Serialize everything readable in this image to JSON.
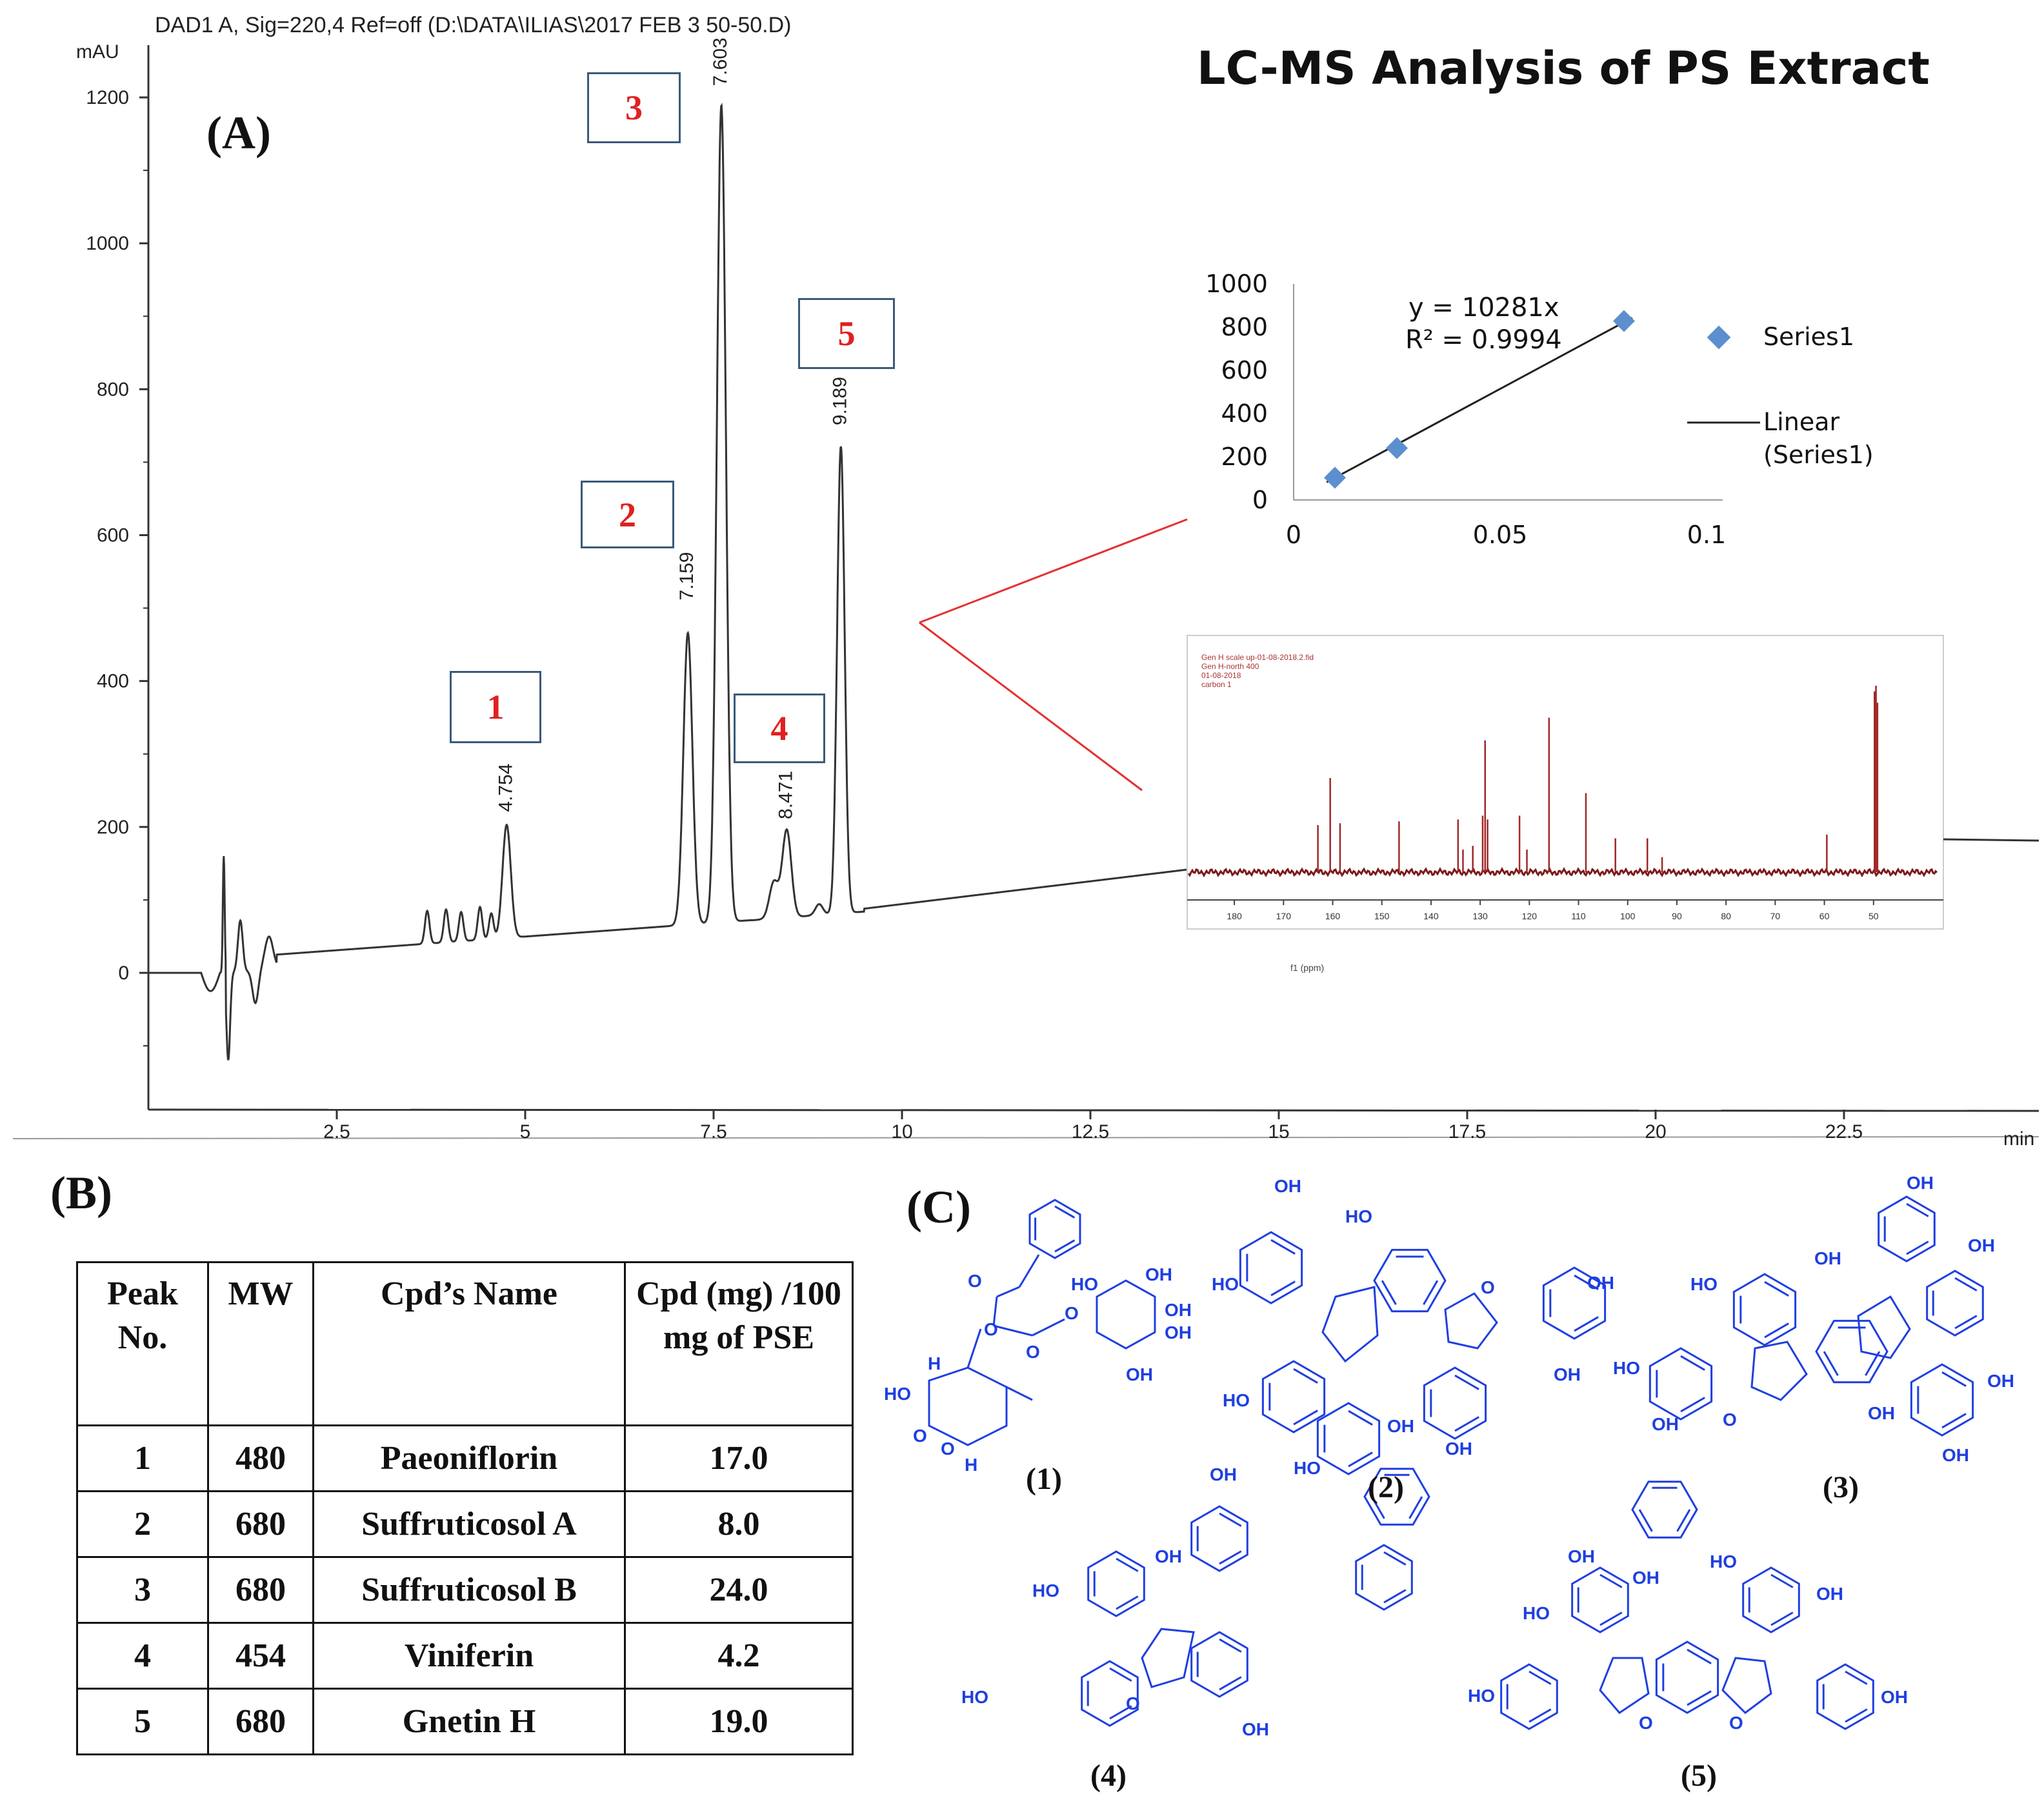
{
  "header": "DAD1 A, Sig=220,4 Ref=off (D:\\DATA\\ILIAS\\2017 FEB 3 50-50.D)",
  "title": "LC-MS Analysis of PS Extract",
  "panels": {
    "a": "(A)",
    "b": "(B)",
    "c": "(C)"
  },
  "chart_data": [
    {
      "type": "line",
      "ylabel": "mAU",
      "xlabel": "min",
      "xlim": [
        0,
        25
      ],
      "ylim": [
        -180,
        1260
      ],
      "x_ticks": [
        "2.5",
        "5",
        "7.5",
        "10",
        "12.5",
        "15",
        "17.5",
        "20",
        "22.5"
      ],
      "y_ticks": [
        "0",
        "200",
        "400",
        "600",
        "800",
        "1000",
        "1200"
      ],
      "peaks": [
        {
          "id": "1",
          "rt": "4.754",
          "x": 4.754,
          "y": 210
        },
        {
          "id": "2",
          "rt": "7.159",
          "x": 7.159,
          "y": 500
        },
        {
          "id": "3",
          "rt": "7.603",
          "x": 7.603,
          "y": 1205
        },
        {
          "id": "4",
          "rt": "8.471",
          "x": 8.471,
          "y": 200
        },
        {
          "id": "5",
          "rt": "9.189",
          "x": 9.189,
          "y": 740
        }
      ]
    },
    {
      "type": "scatter",
      "x_ticks": [
        "0",
        "0.05",
        "0.1"
      ],
      "y_ticks": [
        "0",
        "200",
        "400",
        "600",
        "800",
        "1000"
      ],
      "xlim": [
        0,
        0.1
      ],
      "ylim": [
        0,
        1000
      ],
      "series": [
        {
          "name": "Series1",
          "x": [
            0.01,
            0.025,
            0.08
          ],
          "y": [
            103,
            240,
            828
          ]
        }
      ],
      "trendline": {
        "name": "Linear (Series1)",
        "slope": 10281
      },
      "equation": "y = 10281x",
      "r2": "R² = 0.9994",
      "legend": [
        "Series1",
        "Linear",
        "(Series1)"
      ]
    },
    {
      "type": "line",
      "xlabel": "f1 (ppm)",
      "xlim": [
        190,
        40
      ],
      "x_ticks": [
        "180",
        "170",
        "160",
        "150",
        "140",
        "130",
        "120",
        "110",
        "100",
        "90",
        "80",
        "70",
        "60",
        "50"
      ],
      "header_lines": [
        "Gen H scale up-01-08-2018.2.fid",
        "Gen H-north 400",
        "01-08-2018",
        "carbon 1"
      ],
      "peaks_ppm": [
        163,
        160.5,
        158.5,
        146.5,
        134.5,
        133.5,
        131.5,
        129.5,
        129,
        128.5,
        122,
        120.5,
        116,
        108.5,
        102.5,
        96,
        93,
        59.5,
        49.8,
        49.5,
        49.2
      ],
      "peak_heights": [
        0.25,
        0.5,
        0.26,
        0.27,
        0.28,
        0.12,
        0.14,
        0.3,
        0.7,
        0.28,
        0.3,
        0.12,
        0.82,
        0.42,
        0.18,
        0.18,
        0.08,
        0.2,
        0.96,
        0.99,
        0.9
      ]
    }
  ],
  "table": {
    "headers": [
      "Peak No.",
      "MW",
      "Cpd’s Name",
      "Cpd (mg) /100 mg of PSE"
    ],
    "rows": [
      [
        "1",
        "480",
        "Paeoniflorin",
        "17.0"
      ],
      [
        "2",
        "680",
        "Suffruticosol A",
        "8.0"
      ],
      [
        "3",
        "680",
        "Suffruticosol B",
        "24.0"
      ],
      [
        "4",
        "454",
        "Viniferin",
        "4.2"
      ],
      [
        "5",
        "680",
        "Gnetin H",
        "19.0"
      ]
    ]
  },
  "structures": {
    "labels": [
      "(1)",
      "(2)",
      "(3)",
      "(4)",
      "(5)"
    ],
    "oh": "OH",
    "ho": "HO",
    "h": "H",
    "o": "O",
    "color": "#1f3fe0"
  }
}
